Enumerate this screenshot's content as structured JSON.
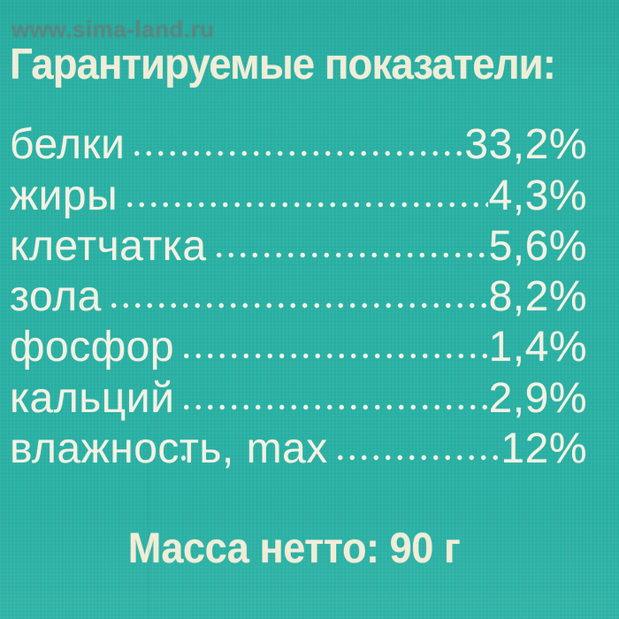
{
  "watermark": "www.sima-land.ru",
  "title": "Гарантируемые показатели:",
  "rows": [
    {
      "label": "белки",
      "value": "33,2%"
    },
    {
      "label": "жиры",
      "value": "4,3%"
    },
    {
      "label": "клетчатка",
      "value": "5,6%"
    },
    {
      "label": "зола",
      "value": "8,2%"
    },
    {
      "label": "фосфор",
      "value": "1,4%"
    },
    {
      "label": "кальций",
      "value": "2,9%"
    },
    {
      "label": "влажность, max",
      "value": "12%"
    }
  ],
  "footer": "Масса нетто: 90 г",
  "colors": {
    "background": "#2ab1a4",
    "title_text": "#f0edd8",
    "body_text": "#f4f2e4",
    "watermark_text": "#677c79"
  }
}
